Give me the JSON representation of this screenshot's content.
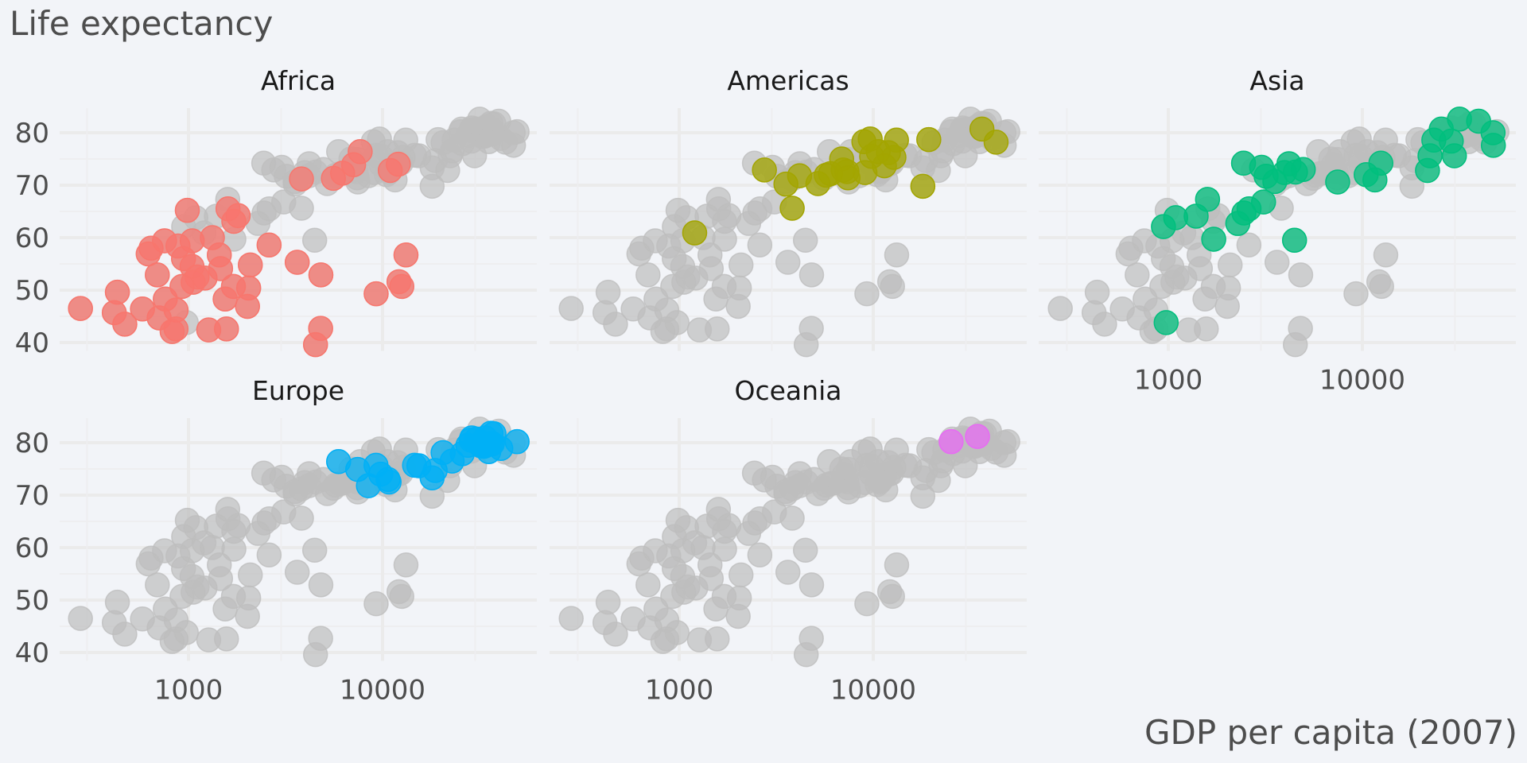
{
  "chart_data": {
    "type": "scatter",
    "title": "Life expectancy",
    "xlabel": "GDP per capita (2007)",
    "ylabel": "Life expectancy",
    "x_scale": "log10",
    "xlim": [
      217,
      62400
    ],
    "ylim": [
      38,
      86
    ],
    "y_ticks": [
      "40",
      "50",
      "60",
      "70",
      "80"
    ],
    "x_ticks": [
      "1000",
      "10000"
    ],
    "grid": true,
    "legend": "none",
    "background_color": "#BEBEBE",
    "facets": [
      {
        "name": "Africa",
        "color": "#F8766D"
      },
      {
        "name": "Americas",
        "color": "#A3A500"
      },
      {
        "name": "Asia",
        "color": "#00BF7D"
      },
      {
        "name": "Europe",
        "color": "#00B0F6"
      },
      {
        "name": "Oceania",
        "color": "#E76BF3"
      }
    ],
    "series": [
      {
        "name": "Africa",
        "points": [
          [
            6223.4,
            72.3
          ],
          [
            4797.2,
            42.7
          ],
          [
            1441.3,
            56.7
          ],
          [
            12569.9,
            50.7
          ],
          [
            1217.0,
            52.3
          ],
          [
            430.1,
            49.6
          ],
          [
            2042.1,
            50.4
          ],
          [
            706.0,
            44.7
          ],
          [
            1704.1,
            50.7
          ],
          [
            986.1,
            65.2
          ],
          [
            277.6,
            46.5
          ],
          [
            3632.6,
            55.3
          ],
          [
            1544.8,
            48.3
          ],
          [
            2082.5,
            54.8
          ],
          [
            5581.2,
            71.3
          ],
          [
            12154.1,
            51.6
          ],
          [
            641.4,
            58.0
          ],
          [
            690.8,
            52.9
          ],
          [
            13206.5,
            56.7
          ],
          [
            752.7,
            59.4
          ],
          [
            1327.5,
            60.0
          ],
          [
            942.7,
            56.0
          ],
          [
            579.2,
            46.4
          ],
          [
            1463.2,
            54.1
          ],
          [
            1569.3,
            42.6
          ],
          [
            414.5,
            45.7
          ],
          [
            12057.5,
            74.0
          ],
          [
            1044.8,
            59.4
          ],
          [
            759.3,
            48.3
          ],
          [
            1042.6,
            54.5
          ],
          [
            1803.2,
            64.2
          ],
          [
            10956.9,
            72.8
          ],
          [
            3820.2,
            71.2
          ],
          [
            823.7,
            42.1
          ],
          [
            4811.1,
            52.9
          ],
          [
            620.0,
            56.9
          ],
          [
            2013.98,
            46.9
          ],
          [
            7670.1,
            76.4
          ],
          [
            863.1,
            46.2
          ],
          [
            1598.4,
            65.5
          ],
          [
            1712.5,
            63.1
          ],
          [
            862.5,
            42.6
          ],
          [
            926.1,
            50.7
          ],
          [
            9269.7,
            49.3
          ],
          [
            2602.4,
            58.6
          ],
          [
            4513.5,
            39.6
          ],
          [
            1107.5,
            52.5
          ],
          [
            882.97,
            58.4
          ],
          [
            7092.9,
            73.9
          ],
          [
            1056.4,
            51.5
          ],
          [
            1271.2,
            42.4
          ],
          [
            469.7,
            43.5
          ]
        ]
      },
      {
        "name": "Americas",
        "points": [
          [
            12779.4,
            75.3
          ],
          [
            3822.1,
            65.6
          ],
          [
            9065.8,
            72.4
          ],
          [
            36319.2,
            80.7
          ],
          [
            13171.6,
            78.6
          ],
          [
            7006.6,
            72.9
          ],
          [
            9645.1,
            78.8
          ],
          [
            8948.1,
            78.3
          ],
          [
            6025.4,
            72.2
          ],
          [
            6873.3,
            75.0
          ],
          [
            5728.4,
            71.9
          ],
          [
            5186.1,
            70.3
          ],
          [
            1201.6,
            60.9
          ],
          [
            3548.3,
            70.2
          ],
          [
            7321.0,
            72.6
          ],
          [
            11977.6,
            76.2
          ],
          [
            2749.3,
            72.9
          ],
          [
            9809.2,
            75.5
          ],
          [
            4172.8,
            71.8
          ],
          [
            7408.9,
            71.4
          ],
          [
            19328.7,
            78.7
          ],
          [
            18008.5,
            69.8
          ],
          [
            42951.7,
            78.2
          ],
          [
            10611.5,
            76.4
          ],
          [
            11415.8,
            73.7
          ]
        ]
      },
      {
        "name": "Asia",
        "points": [
          [
            974.6,
            43.8
          ],
          [
            29796.0,
            75.6
          ],
          [
            1391.3,
            64.1
          ],
          [
            1713.8,
            59.7
          ],
          [
            4959.1,
            73.0
          ],
          [
            39724.98,
            82.2
          ],
          [
            2452.2,
            64.7
          ],
          [
            3540.7,
            70.7
          ],
          [
            11605.7,
            71.0
          ],
          [
            4471.1,
            59.5
          ],
          [
            25523.3,
            80.7
          ],
          [
            31656.1,
            82.6
          ],
          [
            4519.5,
            72.5
          ],
          [
            1593.1,
            67.3
          ],
          [
            23348.1,
            78.6
          ],
          [
            47306.99,
            77.6
          ],
          [
            10461.1,
            72.0
          ],
          [
            12451.7,
            74.2
          ],
          [
            3095.8,
            66.8
          ],
          [
            944.0,
            62.1
          ],
          [
            1091.4,
            63.8
          ],
          [
            22316.2,
            75.6
          ],
          [
            2605.9,
            65.5
          ],
          [
            3190.5,
            71.7
          ],
          [
            21654.8,
            72.8
          ],
          [
            47143.2,
            80.0
          ],
          [
            3970.1,
            72.4
          ],
          [
            4185.0,
            74.1
          ],
          [
            28718.3,
            78.4
          ],
          [
            7458.4,
            70.6
          ],
          [
            2441.6,
            74.2
          ],
          [
            3025.3,
            73.4
          ],
          [
            2280.8,
            62.7
          ]
        ]
      },
      {
        "name": "Europe",
        "points": [
          [
            5937.0,
            76.4
          ],
          [
            36126.5,
            79.8
          ],
          [
            33692.6,
            79.4
          ],
          [
            7446.3,
            74.9
          ],
          [
            10680.8,
            73.0
          ],
          [
            14619.2,
            75.7
          ],
          [
            22833.3,
            76.5
          ],
          [
            35278.4,
            78.3
          ],
          [
            33207.1,
            79.3
          ],
          [
            30470.0,
            80.7
          ],
          [
            32170.4,
            79.4
          ],
          [
            27538.4,
            79.5
          ],
          [
            18008.9,
            73.3
          ],
          [
            36180.8,
            81.8
          ],
          [
            40676.0,
            78.9
          ],
          [
            28569.7,
            80.5
          ],
          [
            9253.9,
            75.7
          ],
          [
            36797.9,
            79.8
          ],
          [
            49357.2,
            80.2
          ],
          [
            15389.9,
            75.6
          ],
          [
            20509.6,
            78.1
          ],
          [
            10808.5,
            72.5
          ],
          [
            9786.5,
            74.0
          ],
          [
            18678.3,
            74.7
          ],
          [
            25768.3,
            77.9
          ],
          [
            28821.1,
            80.9
          ],
          [
            33859.7,
            80.9
          ],
          [
            37506.4,
            81.7
          ],
          [
            8458.3,
            71.8
          ],
          [
            33203.3,
            79.4
          ]
        ]
      },
      {
        "name": "Oceania",
        "points": [
          [
            34435.4,
            81.2
          ],
          [
            25185.0,
            80.2
          ]
        ]
      }
    ]
  }
}
